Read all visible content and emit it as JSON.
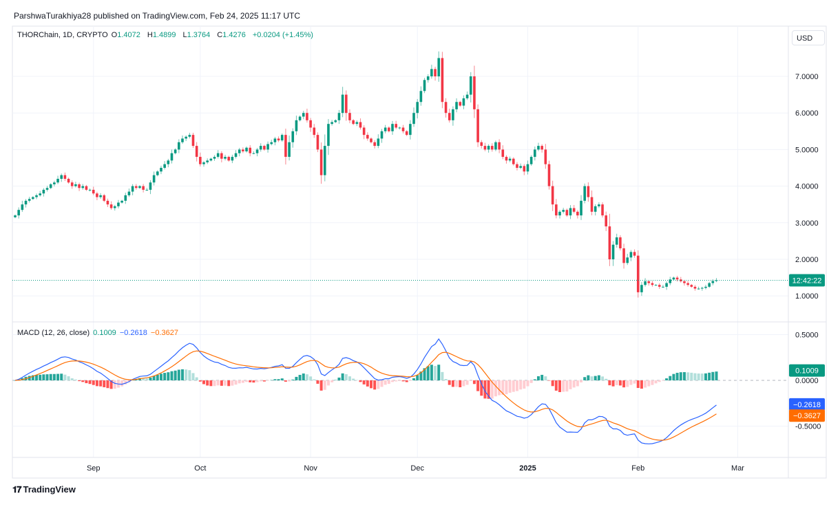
{
  "header": {
    "published": "ParshwaTurakhiya28 published on TradingView.com, Feb 24, 2025 11:17 UTC"
  },
  "legend": {
    "symbol": "THORChain, 1D, CRYPTO",
    "open_label": "O",
    "open": "1.4072",
    "high_label": "H",
    "high": "1.4899",
    "low_label": "L",
    "low": "1.3764",
    "close_label": "C",
    "close": "1.4276",
    "change": "+0.0204 (+1.45%)"
  },
  "currency": "USD",
  "countdown": "12:42:22",
  "macd_legend": {
    "title": "MACD (12, 26, close)",
    "histogram": "0.1009",
    "macd": "−0.2618",
    "signal": "−0.3627"
  },
  "footer": {
    "logo_text": "TradingView"
  },
  "colors": {
    "up": "#089981",
    "down": "#F23645",
    "macd": "#2962FF",
    "signal": "#FF6D00",
    "hist_up": "#26A69A",
    "hist_up_weak": "#B2DFDB",
    "hist_down": "#FF5252",
    "hist_down_weak": "#FFCDD2"
  },
  "chart_data": {
    "type": "candlestick",
    "interval": "1D",
    "x_ticks": [
      "Sep",
      "Oct",
      "Nov",
      "Dec",
      "2025",
      "Feb",
      "Mar"
    ],
    "y_ticks": [
      "7.0000",
      "6.0000",
      "5.0000",
      "4.0000",
      "3.0000",
      "2.0000",
      "1.0000"
    ],
    "y_tick_values": [
      7,
      6,
      5,
      4,
      3,
      2,
      1
    ],
    "ylim": [
      0.6,
      7.8
    ],
    "grid": true,
    "first_open": 3.15,
    "closes": [
      3.2,
      3.35,
      3.5,
      3.6,
      3.65,
      3.7,
      3.75,
      3.8,
      3.9,
      3.95,
      4.05,
      4.1,
      4.2,
      4.3,
      4.2,
      4.1,
      4.0,
      4.05,
      3.95,
      4.0,
      3.9,
      3.9,
      3.8,
      3.7,
      3.75,
      3.6,
      3.5,
      3.4,
      3.45,
      3.55,
      3.6,
      3.75,
      3.85,
      4.0,
      3.95,
      4.0,
      3.9,
      3.9,
      4.1,
      4.3,
      4.4,
      4.5,
      4.6,
      4.7,
      4.9,
      5.0,
      5.2,
      5.3,
      5.35,
      5.4,
      5.1,
      4.8,
      4.6,
      4.65,
      4.7,
      4.75,
      4.8,
      4.9,
      4.75,
      4.8,
      4.7,
      4.8,
      4.9,
      5.0,
      4.95,
      5.05,
      4.9,
      4.9,
      5.0,
      5.1,
      5.0,
      5.15,
      5.2,
      5.3,
      5.25,
      5.4,
      4.8,
      5.2,
      5.5,
      5.8,
      5.9,
      6.0,
      5.8,
      5.6,
      5.4,
      5.0,
      4.3,
      5.1,
      5.7,
      5.75,
      5.8,
      6.0,
      6.5,
      6.0,
      5.8,
      5.7,
      5.75,
      5.6,
      5.4,
      5.3,
      5.2,
      5.1,
      5.3,
      5.5,
      5.6,
      5.5,
      5.7,
      5.6,
      5.6,
      5.5,
      5.4,
      5.7,
      6.0,
      6.3,
      6.6,
      6.9,
      7.0,
      7.2,
      7.0,
      7.5,
      6.3,
      6.0,
      5.8,
      6.1,
      6.3,
      6.2,
      6.4,
      6.5,
      7.0,
      6.1,
      5.2,
      5.1,
      5.0,
      5.1,
      5.0,
      5.2,
      5.0,
      4.8,
      4.7,
      4.75,
      4.6,
      4.5,
      4.55,
      4.4,
      4.6,
      4.8,
      5.0,
      5.1,
      5.0,
      4.6,
      4.0,
      3.5,
      3.2,
      3.3,
      3.35,
      3.2,
      3.4,
      3.3,
      3.2,
      3.6,
      4.0,
      3.7,
      3.3,
      3.45,
      3.5,
      3.2,
      2.9,
      2.0,
      2.4,
      2.6,
      2.3,
      1.9,
      2.05,
      2.2,
      2.1,
      1.1,
      1.3,
      1.4,
      1.35,
      1.3,
      1.3,
      1.25,
      1.25,
      1.35,
      1.45,
      1.5,
      1.45,
      1.4,
      1.35,
      1.3,
      1.25,
      1.2,
      1.2,
      1.22,
      1.25,
      1.35,
      1.4072,
      1.4276
    ],
    "last_price": 1.4276,
    "macd_panel": {
      "params": "12, 26, close",
      "y_ticks": [
        "0.5000",
        "0.0000",
        "-0.5000"
      ],
      "y_tick_values": [
        0.5,
        0,
        -0.5
      ],
      "last_histogram": 0.1009,
      "last_macd": -0.2618,
      "last_signal": -0.3627
    }
  }
}
